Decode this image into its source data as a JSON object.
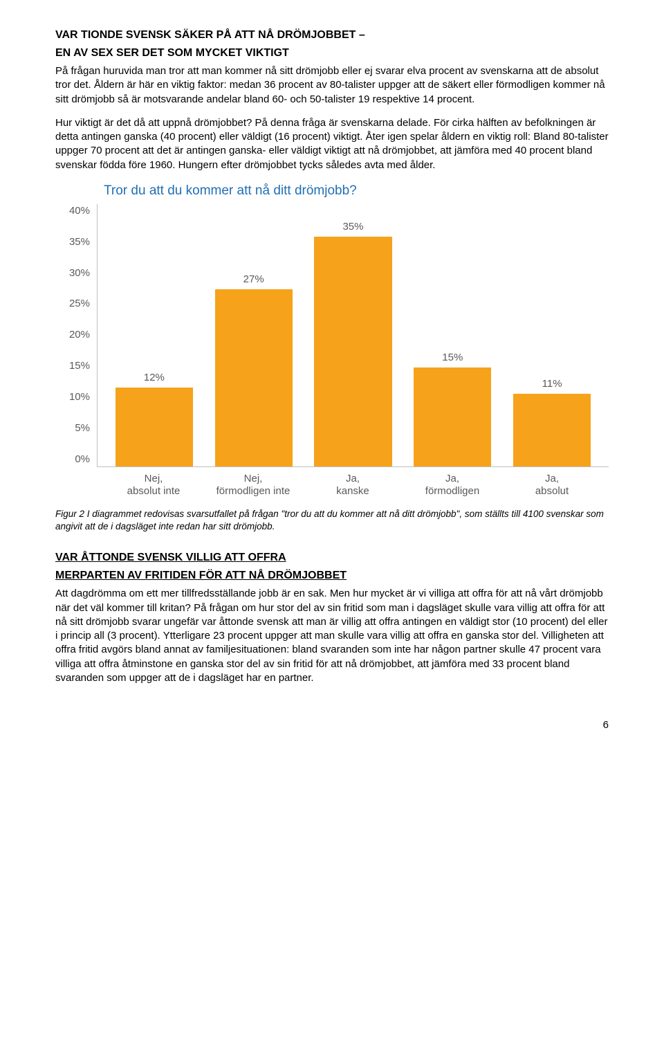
{
  "section1": {
    "heading_l1": "VAR TIONDE SVENSK SÄKER PÅ ATT NÅ DRÖMJOBBET –",
    "heading_l2": "EN AV SEX SER DET SOM MYCKET VIKTIGT",
    "p1": "På frågan huruvida man tror att man kommer nå sitt drömjobb eller ej svarar elva procent av svenskarna att de absolut tror det. Åldern är här en viktig faktor: medan 36 procent av 80-talister uppger att de säkert eller förmodligen kommer nå sitt drömjobb så är motsvarande andelar bland 60- och 50-talister 19 respektive 14 procent.",
    "p2": "Hur viktigt är det då att uppnå drömjobbet? På denna fråga är svenskarna delade. För cirka hälften av befolkningen är detta antingen ganska (40 procent) eller väldigt (16 procent) viktigt. Åter igen spelar åldern en viktig roll: Bland 80-talister uppger 70 procent att det är antingen ganska- eller väldigt viktigt att nå drömjobbet, att jämföra med 40 procent bland svenskar födda före 1960. Hungern efter drömjobbet tycks således avta med ålder."
  },
  "chart": {
    "type": "bar",
    "title": "Tror du att du kommer att nå ditt drömjobb?",
    "title_color": "#1f6fb5",
    "bar_color": "#f6a21b",
    "ylim_max": 40,
    "ytick_step": 5,
    "yticks": [
      "40%",
      "35%",
      "30%",
      "25%",
      "20%",
      "15%",
      "10%",
      "5%",
      "0%"
    ],
    "categories": [
      "Nej, absolut inte",
      "Nej, förmodligen inte",
      "Ja, kanske",
      "Ja, förmodligen",
      "Ja, absolut"
    ],
    "values": [
      12,
      27,
      35,
      15,
      11
    ],
    "value_labels": [
      "12%",
      "27%",
      "35%",
      "15%",
      "11%"
    ],
    "background_color": "#ffffff",
    "axis_color": "#bfbfbf",
    "tick_font_color": "#595959"
  },
  "caption": "Figur 2 I diagrammet redovisas svarsutfallet på frågan \"tror du att du kommer att nå ditt drömjobb\", som ställts till 4100 svenskar som angivit att de i dagsläget inte redan har sitt drömjobb.",
  "section2": {
    "heading_l1": "VAR ÅTTONDE SVENSK VILLIG ATT OFFRA",
    "heading_l2": "MERPARTEN AV FRITIDEN FÖR ATT NÅ DRÖMJOBBET",
    "p1": "Att dagdrömma om ett mer tillfredsställande jobb är en sak. Men hur mycket är vi villiga att offra för att nå vårt drömjobb när det väl kommer till kritan? På frågan om hur stor del av sin fritid som man i dagsläget skulle vara villig att offra för att nå sitt drömjobb svarar ungefär var åttonde svensk att man är villig att offra antingen en väldigt stor (10 procent) del eller i princip all (3 procent). Ytterligare 23 procent uppger att man skulle vara villig att offra en ganska stor del. Villigheten att offra fritid avgörs bland annat av familjesituationen: bland svaranden som inte har någon partner skulle 47 procent vara villiga att offra åtminstone en ganska stor del av sin fritid för att nå drömjobbet, att jämföra med 33 procent bland svaranden som uppger att de i dagsläget har en partner."
  },
  "page_number": "6"
}
